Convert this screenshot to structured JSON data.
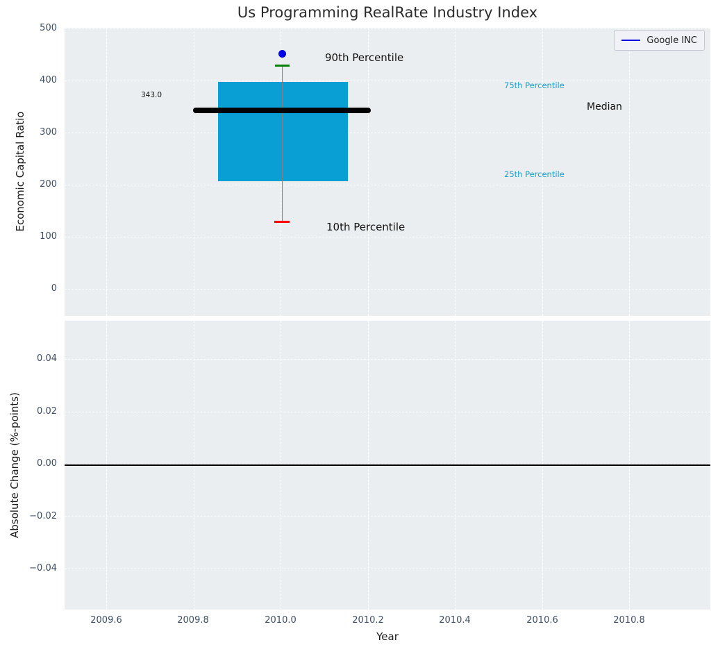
{
  "figure": {
    "title": "Us Programming RealRate Industry Index"
  },
  "top_chart": {
    "ylabel": "Economic Capital Ratio",
    "yticks": [
      "500",
      "400",
      "300",
      "200",
      "100",
      "0"
    ],
    "legend": {
      "label": "Google INC"
    },
    "annotations": {
      "median_value": "343.0",
      "p90_label": "90th Percentile",
      "p10_label": "10th Percentile",
      "p75_label": "75th Percentile",
      "p25_label": "25th Percentile",
      "median_label": "Median"
    }
  },
  "bottom_chart": {
    "ylabel": "Absolute Change (%-points)",
    "xlabel": "Year",
    "yticks": [
      "0.04",
      "0.02",
      "0.00",
      "−0.02",
      "−0.04"
    ],
    "xticks": [
      "2009.6",
      "2009.8",
      "2010.0",
      "2010.2",
      "2010.4",
      "2010.6",
      "2010.8"
    ]
  },
  "colors": {
    "plot_background": "#ebeef0",
    "box_fill": "#0a9fd4",
    "median_line": "#000000",
    "p90_marker": "#008000",
    "p10_marker": "#ff0000",
    "company_point": "#0000e6",
    "percentile_text": "#189fd1",
    "tick_text": "#3d4e63"
  },
  "chart_data": [
    {
      "type": "box",
      "title": "Us Programming RealRate Industry Index",
      "ylabel": "Economic Capital Ratio",
      "yticks": [
        0,
        100,
        200,
        300,
        400,
        500
      ],
      "ylim": [
        -52,
        502
      ],
      "xlim": [
        2009.5,
        2010.99
      ],
      "grid": true,
      "x": 2010.0,
      "box_width": 0.3,
      "median_line_width": 0.4,
      "stats": {
        "p10": 130,
        "p25": 208,
        "median": 343.0,
        "p75": 397,
        "p90": 425
      },
      "points": [
        {
          "name": "Google INC",
          "x": 2010.0,
          "y": 450,
          "color": "#0000e6",
          "marker": "circle"
        }
      ],
      "legend": {
        "entries": [
          "Google INC"
        ],
        "position": "upper right"
      },
      "annotations": [
        "343.0",
        "90th Percentile",
        "75th Percentile",
        "Median",
        "25th Percentile",
        "10th Percentile"
      ]
    },
    {
      "type": "line",
      "ylabel": "Absolute Change (%-points)",
      "xlabel": "Year",
      "yticks": [
        0.04,
        0.02,
        0.0,
        -0.02,
        -0.04
      ],
      "ylim": [
        -0.055,
        0.055
      ],
      "xticks": [
        2009.6,
        2009.8,
        2010.0,
        2010.2,
        2010.4,
        2010.6,
        2010.8
      ],
      "xlim": [
        2009.5,
        2010.99
      ],
      "grid": true,
      "series": [],
      "zero_line": 0.0
    }
  ]
}
